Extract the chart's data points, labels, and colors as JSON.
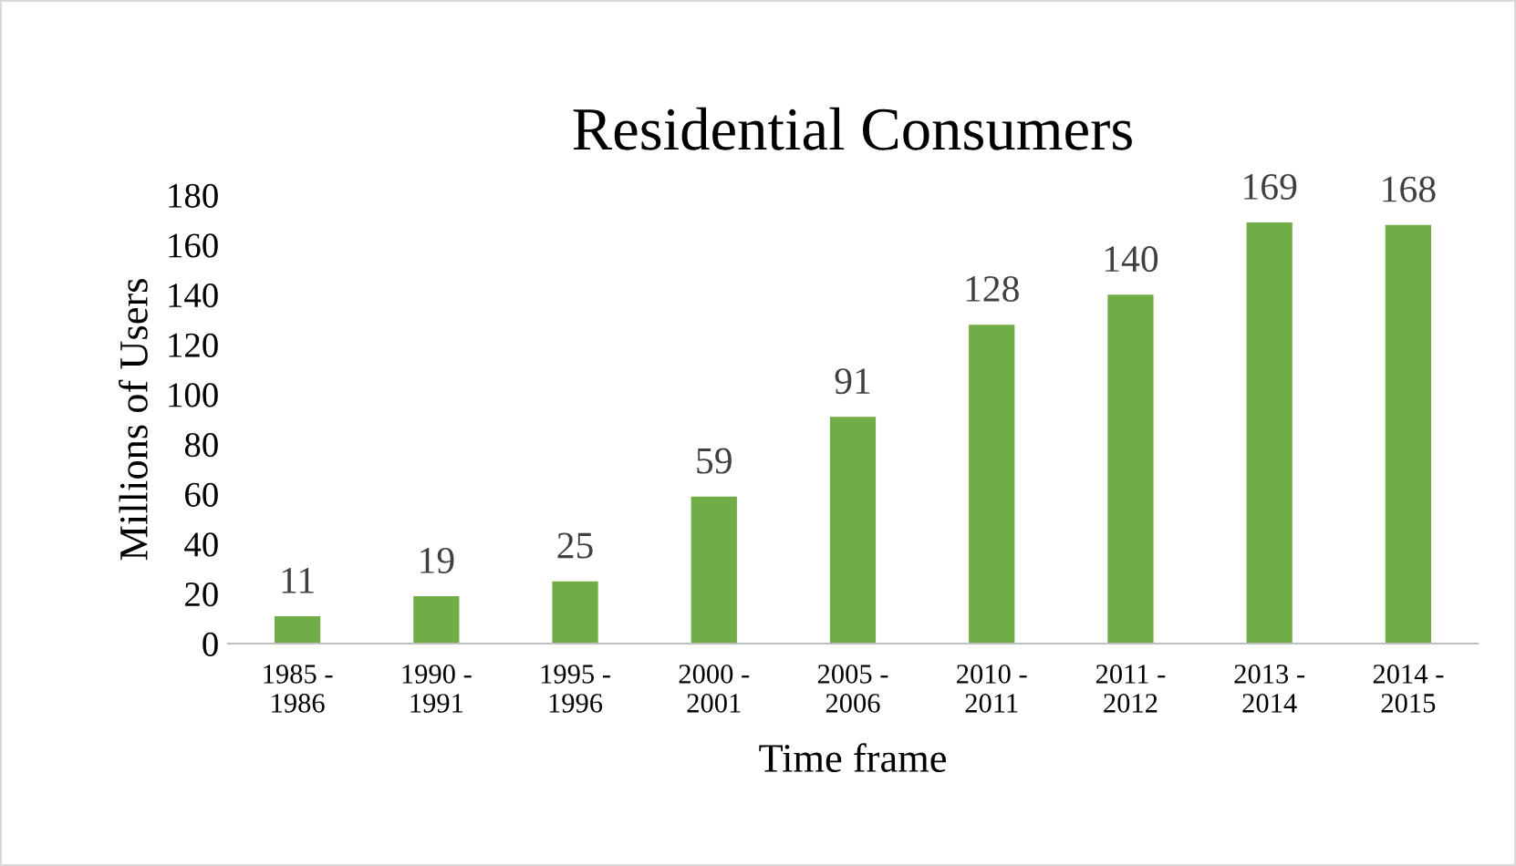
{
  "chart_data": {
    "type": "bar",
    "title": "Residential Consumers",
    "xlabel": "Time frame",
    "ylabel": "Millions of Users",
    "categories": [
      "1985 -\n1986",
      "1990 -\n1991",
      "1995 -\n1996",
      "2000 -\n2001",
      "2005 -\n2006",
      "2010 -\n2011",
      "2011 -\n2012",
      "2013 -\n2014",
      "2014 -\n2015"
    ],
    "values": [
      11,
      19,
      25,
      59,
      91,
      128,
      140,
      169,
      168
    ],
    "color": "#70ad47",
    "ylim": [
      0,
      180
    ],
    "yticks": [
      0,
      20,
      40,
      60,
      80,
      100,
      120,
      140,
      160,
      180
    ],
    "grid": false,
    "data_labels": true,
    "legend": false
  }
}
